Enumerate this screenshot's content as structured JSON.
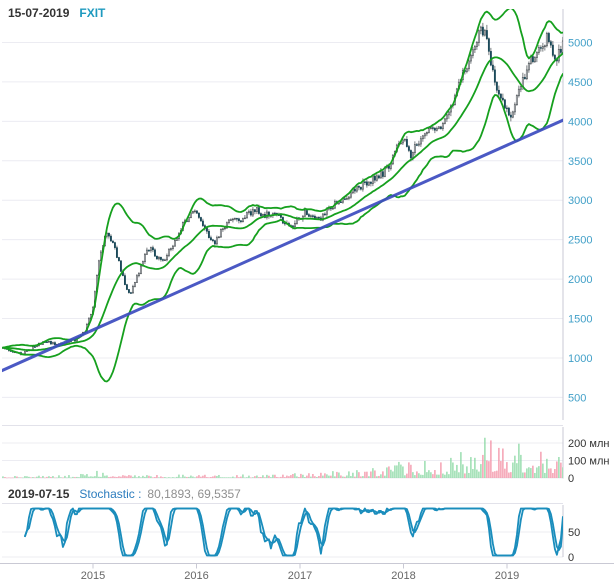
{
  "header": {
    "date": "15-07-2019",
    "symbol": "FXIT"
  },
  "stochastic_header": {
    "date": "2019-07-15",
    "indicator_label": "Stochastic :",
    "values": "80,1893, 69,5357"
  },
  "colors": {
    "grid": "#ececf2",
    "panel_border": "#e2e2ea",
    "axis": "#c9c9d4",
    "price_label": "#42a0c8",
    "year_label": "#666666",
    "side_label_dark": "#333333",
    "band_green": "#16a01e",
    "trend_blue": "#3c4cc0",
    "candle_up_fill": "#ffffff",
    "candle_stroke": "#40474c",
    "candle_down_fill": "#1d4a5a",
    "volume_up": "#8bd8a4",
    "volume_down": "#f392a6",
    "stochastic_line": "#1a8dbc"
  },
  "chart_data": [
    {
      "type": "candlestick",
      "title": "FXIT weekly price with Bollinger Bands and trendline",
      "bars": 281,
      "x_range": [
        2014.13,
        2019.54
      ],
      "x_tick_years": [
        2015,
        2016,
        2017,
        2018,
        2019
      ],
      "x_tick_labels": [
        "2015",
        "2016",
        "2017",
        "2018",
        "2019"
      ],
      "y_ticks": [
        500,
        1000,
        1500,
        2000,
        2500,
        3000,
        3500,
        4000,
        4500,
        5000
      ],
      "ylim": [
        500,
        5000
      ],
      "grid": true,
      "close_keypoints": [
        [
          2014.13,
          1120
        ],
        [
          2014.22,
          1080
        ],
        [
          2014.32,
          1050
        ],
        [
          2014.45,
          1160
        ],
        [
          2014.55,
          1210
        ],
        [
          2014.65,
          1160
        ],
        [
          2014.75,
          1190
        ],
        [
          2014.85,
          1240
        ],
        [
          2014.92,
          1330
        ],
        [
          2015.0,
          1650
        ],
        [
          2015.06,
          2250
        ],
        [
          2015.12,
          2580
        ],
        [
          2015.17,
          2520
        ],
        [
          2015.22,
          2340
        ],
        [
          2015.3,
          2000
        ],
        [
          2015.34,
          1790
        ],
        [
          2015.4,
          1930
        ],
        [
          2015.48,
          2230
        ],
        [
          2015.55,
          2420
        ],
        [
          2015.62,
          2280
        ],
        [
          2015.7,
          2270
        ],
        [
          2015.8,
          2520
        ],
        [
          2015.88,
          2720
        ],
        [
          2015.96,
          2850
        ],
        [
          2016.04,
          2780
        ],
        [
          2016.12,
          2530
        ],
        [
          2016.17,
          2460
        ],
        [
          2016.25,
          2640
        ],
        [
          2016.33,
          2790
        ],
        [
          2016.42,
          2740
        ],
        [
          2016.5,
          2820
        ],
        [
          2016.58,
          2870
        ],
        [
          2016.66,
          2800
        ],
        [
          2016.75,
          2860
        ],
        [
          2016.83,
          2740
        ],
        [
          2016.9,
          2640
        ],
        [
          2016.97,
          2760
        ],
        [
          2017.05,
          2840
        ],
        [
          2017.12,
          2800
        ],
        [
          2017.2,
          2760
        ],
        [
          2017.28,
          2880
        ],
        [
          2017.36,
          2980
        ],
        [
          2017.45,
          3060
        ],
        [
          2017.55,
          3140
        ],
        [
          2017.63,
          3220
        ],
        [
          2017.72,
          3280
        ],
        [
          2017.8,
          3340
        ],
        [
          2017.87,
          3440
        ],
        [
          2017.94,
          3660
        ],
        [
          2018.0,
          3780
        ],
        [
          2018.06,
          3560
        ],
        [
          2018.13,
          3700
        ],
        [
          2018.2,
          3820
        ],
        [
          2018.28,
          3880
        ],
        [
          2018.36,
          3960
        ],
        [
          2018.44,
          4130
        ],
        [
          2018.52,
          4380
        ],
        [
          2018.6,
          4680
        ],
        [
          2018.68,
          4950
        ],
        [
          2018.74,
          5120
        ],
        [
          2018.78,
          5160
        ],
        [
          2018.83,
          4850
        ],
        [
          2018.89,
          4480
        ],
        [
          2018.95,
          4280
        ],
        [
          2019.02,
          4080
        ],
        [
          2019.06,
          4150
        ],
        [
          2019.12,
          4380
        ],
        [
          2019.2,
          4680
        ],
        [
          2019.28,
          4900
        ],
        [
          2019.34,
          5000
        ],
        [
          2019.4,
          5060
        ],
        [
          2019.45,
          4760
        ],
        [
          2019.49,
          4840
        ],
        [
          2019.54,
          5000
        ]
      ],
      "bollinger": {
        "period": 20,
        "mult": 2
      },
      "trendline": {
        "start": {
          "year": 2014.12,
          "price": 840
        },
        "end": {
          "year": 2019.55,
          "price": 4020
        }
      }
    },
    {
      "type": "bar",
      "title": "Volume",
      "unit": "млн",
      "y_ticks": [
        {
          "v": 200,
          "label": "200 млн"
        },
        {
          "v": 100,
          "label": "100 млн"
        },
        {
          "v": 0,
          "label": "0"
        }
      ],
      "ylim": [
        0,
        300
      ],
      "volume_keypoints": [
        [
          2014.13,
          7
        ],
        [
          2014.8,
          9
        ],
        [
          2015.05,
          22
        ],
        [
          2015.3,
          12
        ],
        [
          2015.7,
          9
        ],
        [
          2016.0,
          13
        ],
        [
          2016.3,
          11
        ],
        [
          2016.7,
          10
        ],
        [
          2017.0,
          16
        ],
        [
          2017.4,
          22
        ],
        [
          2017.8,
          34
        ],
        [
          2018.0,
          48
        ],
        [
          2018.3,
          55
        ],
        [
          2018.5,
          70
        ],
        [
          2018.7,
          105
        ],
        [
          2018.85,
          115
        ],
        [
          2019.0,
          95
        ],
        [
          2019.15,
          105
        ],
        [
          2019.3,
          85
        ],
        [
          2019.45,
          95
        ],
        [
          2019.54,
          75
        ]
      ],
      "volume_spikes": [
        [
          2017.95,
          92
        ],
        [
          2018.55,
          148
        ],
        [
          2018.78,
          230
        ],
        [
          2018.92,
          172
        ],
        [
          2019.12,
          196
        ],
        [
          2019.32,
          150
        ],
        [
          2019.5,
          120
        ]
      ]
    },
    {
      "type": "line",
      "title": "Stochastic",
      "k_period": 12,
      "k_smooth": 2,
      "d_period": 3,
      "last_k": 80.1893,
      "last_d": 69.5357,
      "ylim": [
        0,
        100
      ],
      "y_ticks": [
        {
          "v": 50,
          "label": "50"
        },
        {
          "v": 0,
          "label": "0"
        }
      ]
    }
  ]
}
